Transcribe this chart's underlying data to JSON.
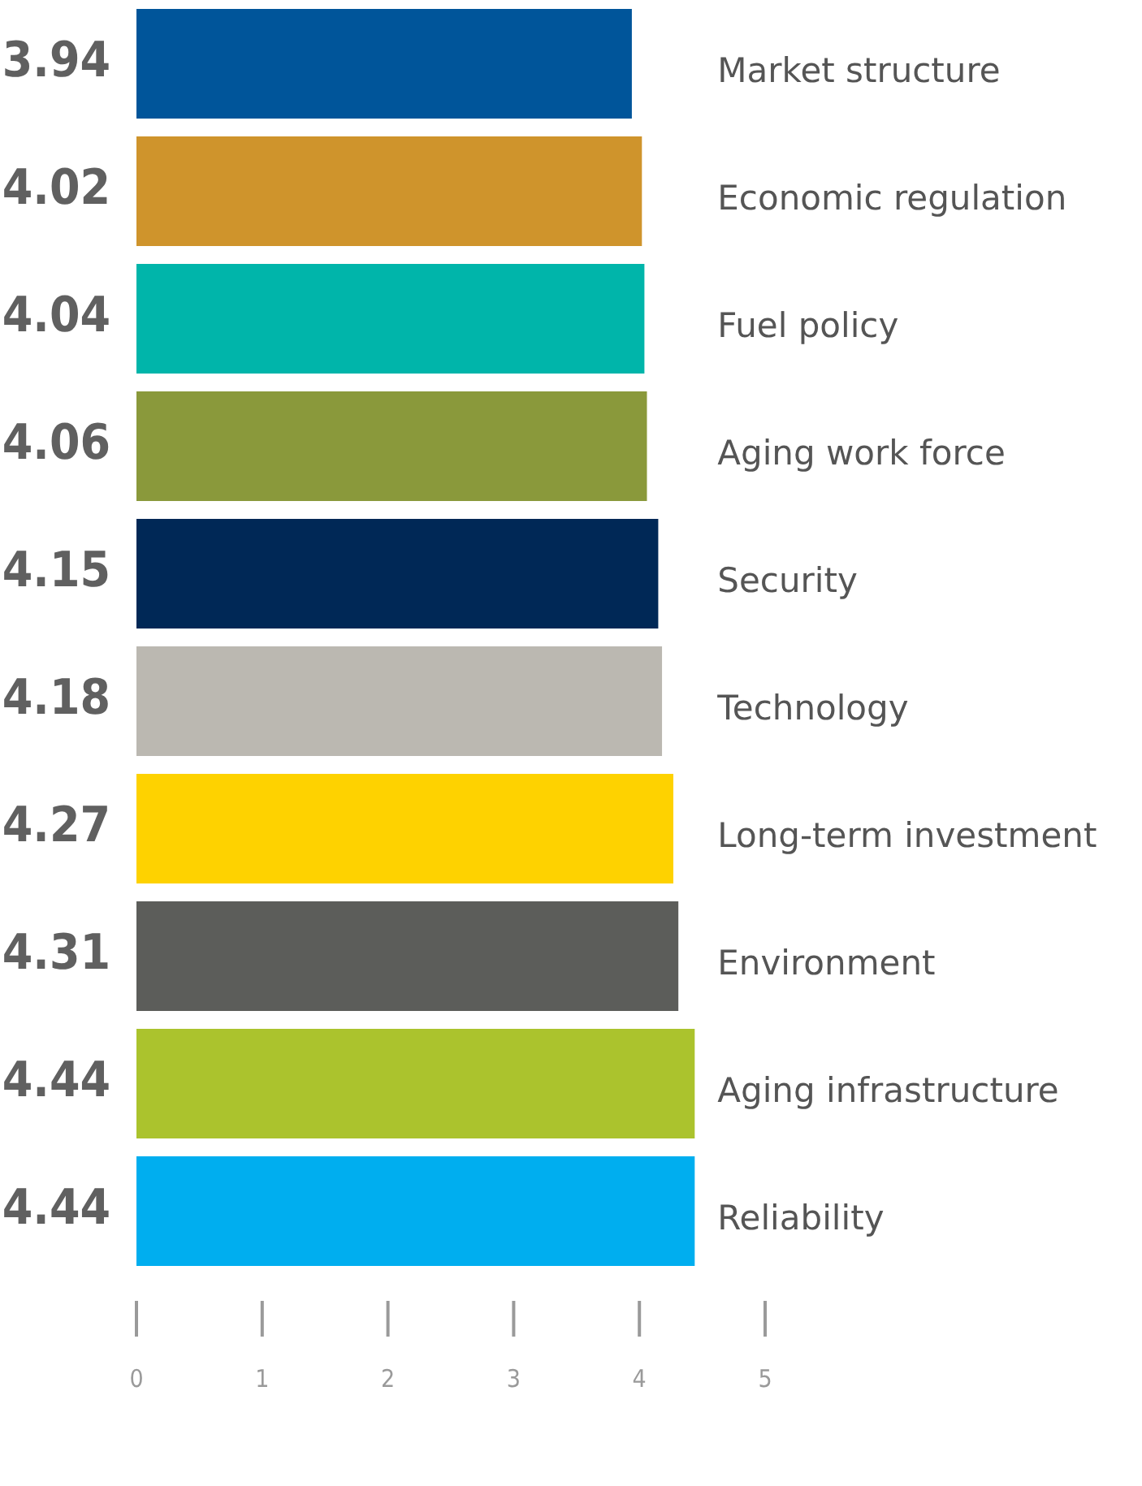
{
  "chart_data": {
    "type": "bar",
    "orientation": "horizontal",
    "categories": [
      "Market structure",
      "Economic regulation",
      "Fuel policy",
      "Aging work force",
      "Security",
      "Technology",
      "Long-term investment",
      "Environment",
      "Aging infrastructure",
      "Reliability"
    ],
    "values": [
      3.94,
      4.02,
      4.04,
      4.06,
      4.15,
      4.18,
      4.27,
      4.31,
      4.44,
      4.44
    ],
    "colors": [
      "#00559a",
      "#cf942c",
      "#00b5aa",
      "#8a993b",
      "#002856",
      "#bbb8b1",
      "#fed200",
      "#5c5d5a",
      "#abc32d",
      "#00aeef"
    ],
    "xlim": [
      0,
      5
    ],
    "xticks": [
      0,
      1,
      2,
      3,
      4,
      5
    ],
    "data_labels": true,
    "grid": false,
    "legend": false
  }
}
